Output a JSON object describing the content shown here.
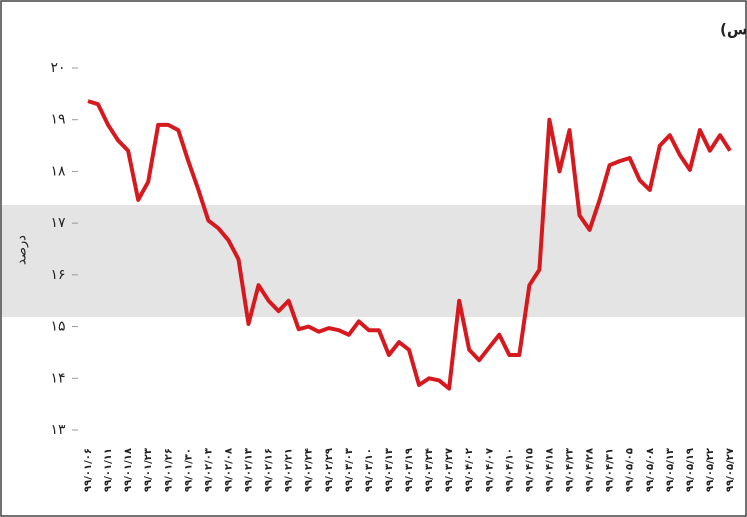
{
  "chart_data": {
    "type": "line",
    "title": "روند میانگین نرخ سود موثر اسناد خزانه اسلامی از ابتدای سال تاکنون (در فرابورس)",
    "y_label": "درصد",
    "categories": [
      "۹۹/۰۱/۰۶",
      null,
      "۹۹/۰۱/۱۱",
      null,
      "۹۹/۰۱/۱۸",
      null,
      "۹۹/۰۱/۲۳",
      null,
      "۹۹/۰۱/۲۶",
      null,
      "۹۹/۰۱/۳۰",
      null,
      "۹۹/۰۲/۰۳",
      null,
      "۹۹/۰۲/۰۸",
      null,
      "۹۹/۰۲/۱۳",
      null,
      "۹۹/۰۲/۱۶",
      null,
      "۹۹/۰۲/۲۱",
      null,
      "۹۹/۰۲/۲۴",
      null,
      "۹۹/۰۲/۲۹",
      null,
      "۹۹/۰۳/۰۳",
      null,
      "۹۹/۰۳/۱۰",
      null,
      "۹۹/۰۳/۱۳",
      null,
      "۹۹/۰۳/۱۹",
      null,
      "۹۹/۰۳/۲۴",
      null,
      "۹۹/۰۳/۲۷",
      null,
      "۹۹/۰۴/۰۲",
      null,
      "۹۹/۰۴/۰۷",
      null,
      "۹۹/۰۴/۱۰",
      null,
      "۹۹/۰۴/۱۵",
      null,
      "۹۹/۰۴/۱۸",
      null,
      "۹۹/۰۴/۲۳",
      null,
      "۹۹/۰۴/۲۸",
      null,
      "۹۹/۰۴/۳۱",
      null,
      "۹۹/۰۵/۰۵",
      null,
      "۹۹/۰۵/۰۸",
      null,
      "۹۹/۰۵/۱۳",
      null,
      "۹۹/۰۵/۱۹",
      null,
      "۹۹/۰۵/۲۲",
      null,
      "۹۹/۰۵/۲۷"
    ],
    "series": [
      {
        "color": "#d6191f",
        "values": [
          19.36,
          19.3,
          18.9,
          18.6,
          18.4,
          17.45,
          17.8,
          18.9,
          18.9,
          18.8,
          18.2,
          17.65,
          17.05,
          16.9,
          16.67,
          16.3,
          15.05,
          15.8,
          15.5,
          15.3,
          15.5,
          14.95,
          15.0,
          14.9,
          14.97,
          14.93,
          14.84,
          15.1,
          14.93,
          14.93,
          14.45,
          14.7,
          14.55,
          13.87,
          14.0,
          13.96,
          13.8,
          15.5,
          14.55,
          14.35,
          14.6,
          14.84,
          14.45,
          14.45,
          15.8,
          16.1,
          19.0,
          18.0,
          18.8,
          17.15,
          16.87,
          17.45,
          18.12,
          18.2,
          18.26,
          17.83,
          17.64,
          18.5,
          18.7,
          18.32,
          18.03,
          18.8,
          18.4,
          18.7,
          18.4
        ]
      }
    ],
    "ylim": [
      13,
      20
    ],
    "yticks": [
      {
        "value": 13,
        "label": "۱۳"
      },
      {
        "value": 14,
        "label": "۱۴"
      },
      {
        "value": 15,
        "label": "۱۵"
      },
      {
        "value": 16,
        "label": "۱۶"
      },
      {
        "value": 17,
        "label": "۱۷"
      },
      {
        "value": 18,
        "label": "۱۸"
      },
      {
        "value": 19,
        "label": "۱۹"
      },
      {
        "value": 20,
        "label": "۲۰"
      }
    ]
  }
}
